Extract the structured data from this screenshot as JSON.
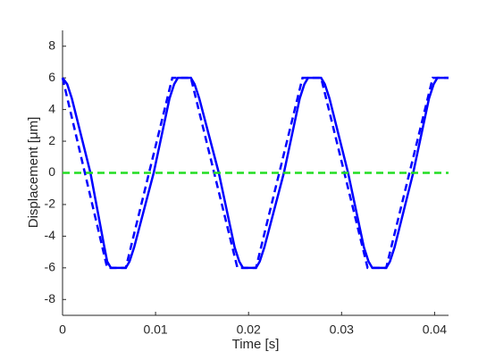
{
  "chart_data": {
    "type": "line",
    "xlabel": "Time [s]",
    "ylabel": "Displacement [μm]",
    "xlim": [
      0,
      0.0415
    ],
    "xticks": [
      0,
      0.01,
      0.02,
      0.03,
      0.04
    ],
    "ylim": [
      -9,
      9
    ],
    "yticks": [
      -8,
      -6,
      -4,
      -2,
      0,
      2,
      4,
      6,
      8
    ],
    "grid": false,
    "series": [
      {
        "color": "#0000ff",
        "dash": "solid",
        "x": [
          0,
          0.0005,
          0.001,
          0.003,
          0.0045,
          0.0048,
          0.0052,
          0.0068,
          0.0072,
          0.0077,
          0.0098,
          0.0115,
          0.012,
          0.0124,
          0.0138,
          0.0142,
          0.0147,
          0.0168,
          0.0185,
          0.019,
          0.0194,
          0.0208,
          0.0212,
          0.0217,
          0.0238,
          0.0255,
          0.026,
          0.0264,
          0.0278,
          0.0282,
          0.0287,
          0.0307,
          0.0324,
          0.0329,
          0.0333,
          0.0348,
          0.0352,
          0.0357,
          0.0377,
          0.0394,
          0.0399,
          0.0403,
          0.0415
        ],
        "values": [
          6,
          5.6,
          4.7,
          0,
          -4.7,
          -5.6,
          -6,
          -6,
          -5.6,
          -4.7,
          0,
          4.7,
          5.6,
          6,
          6,
          5.6,
          4.7,
          0,
          -4.7,
          -5.6,
          -6,
          -6,
          -5.6,
          -4.7,
          0,
          4.7,
          5.6,
          6,
          6,
          5.6,
          4.7,
          0,
          -4.7,
          -5.6,
          -6,
          -6,
          -5.6,
          -4.7,
          0,
          4.7,
          5.6,
          6,
          6
        ]
      },
      {
        "color": "#0000ff",
        "dash": "dashed",
        "x": [
          0,
          0.0048,
          0.0068,
          0.0118,
          0.0138,
          0.0188,
          0.0208,
          0.0258,
          0.0278,
          0.0328,
          0.0348,
          0.0398,
          0.0415
        ],
        "values": [
          6,
          -6,
          -6,
          6,
          6,
          -6,
          -6,
          6,
          6,
          -6,
          -6,
          6,
          6
        ]
      },
      {
        "color": "#22dd22",
        "dash": "dashed",
        "x": [
          0,
          0.0415
        ],
        "values": [
          0,
          0
        ]
      }
    ]
  }
}
